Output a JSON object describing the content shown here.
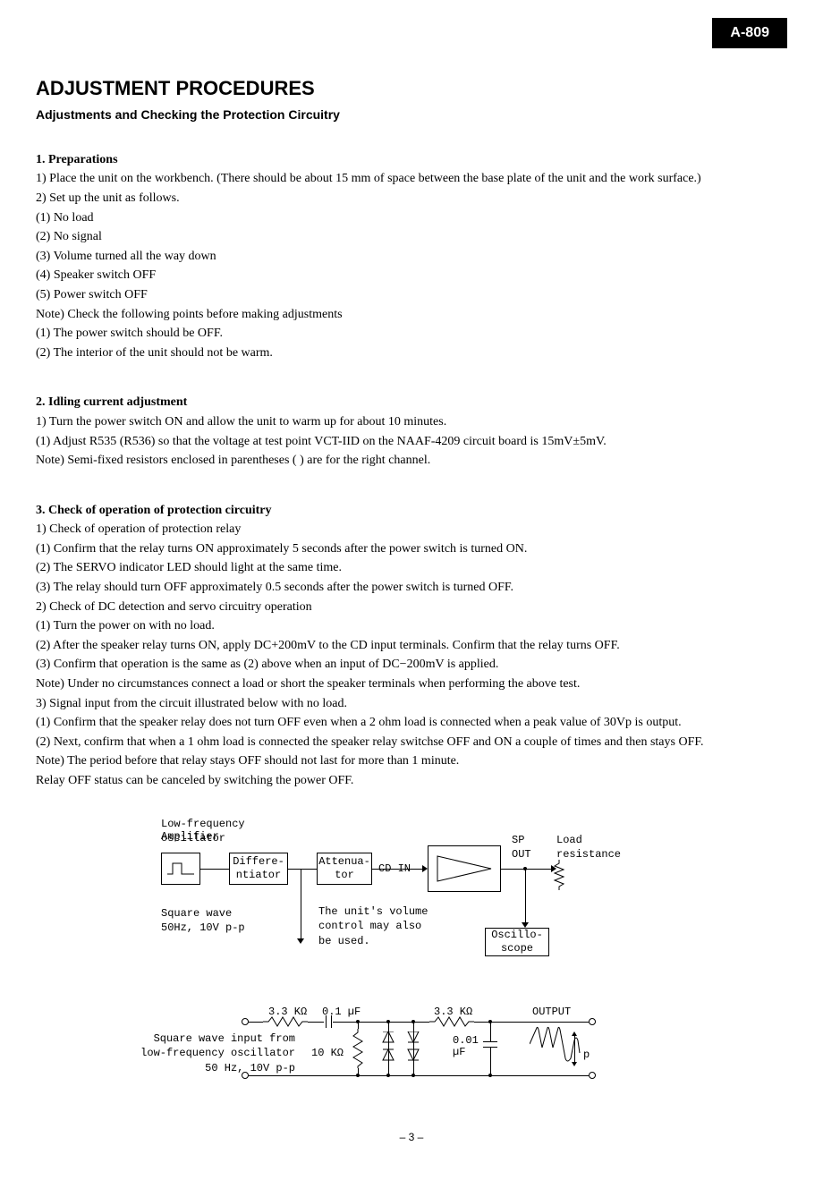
{
  "model_badge": "A-809",
  "page_number": "– 3 –",
  "title": "ADJUSTMENT PROCEDURES",
  "subtitle": "Adjustments and Checking the Protection Circuitry",
  "sections": {
    "s1": {
      "num": "1.",
      "title": "Preparations",
      "items": {
        "i1": "1) Place the unit on the workbench. (There should be about 15 mm of space between the base plate of the unit and the work surface.)",
        "i2": "2) Set up the unit as follows.",
        "i2_1": "(1) No load",
        "i2_2": "(2) No signal",
        "i2_3": "(3) Volume turned all the way down",
        "i2_4": "(4) Speaker switch OFF",
        "i2_5": "(5) Power switch OFF",
        "note": "Note) Check the following points before making adjustments",
        "note_1": "(1) The power switch should be OFF.",
        "note_2": "(2) The interior of the unit should not be warm."
      }
    },
    "s2": {
      "num": "2.",
      "title": "Idling current adjustment",
      "items": {
        "i1": "1) Turn the power switch ON and allow the unit to warm up for about 10 minutes.",
        "i1_1": "(1) Adjust R535 (R536) so that the voltage at test point VCT-IID on the NAAF-4209 circuit board is 15mV±5mV.",
        "note_1": "Note) Semi-fixed resistors enclosed in parentheses (   ) are for the right channel."
      }
    },
    "s3": {
      "num": "3.",
      "title": "Check of operation of protection circuitry",
      "items": {
        "i1": "1) Check of operation of protection relay",
        "i1_1": "(1) Confirm that the relay turns ON approximately 5 seconds after the power switch is turned ON.",
        "i1_2": "(2) The SERVO indicator LED should light at the same time.",
        "i1_3": "(3) The relay should turn OFF approximately 0.5 seconds after the power switch is turned OFF.",
        "i2": "2) Check of DC detection and servo circuitry operation",
        "i2_1": "(1) Turn the power on with no load.",
        "i2_2": "(2) After the speaker relay turns ON, apply DC+200mV to the CD input terminals. Confirm that the relay turns OFF.",
        "i2_3": "(3) Confirm that operation is the same as (2) above when an input of DC−200mV is applied.",
        "note1": "Note) Under no circumstances connect a load or short the speaker terminals when performing the above test.",
        "i3": "3) Signal input from the circuit illustrated below with no load.",
        "i3_1": "(1) Confirm that the speaker relay does not turn OFF even when a 2 ohm load is connected when a peak value of 30Vp is output.",
        "i3_2": "(2) Next, confirm that when a 1 ohm load is connected the speaker relay switchse OFF and ON a couple of times and then stays OFF.",
        "note2a": "Note) The period before that relay stays OFF should not last for more than 1 minute.",
        "note2b": "Relay OFF status can be canceled by switching the power OFF."
      }
    }
  },
  "diagram": {
    "labels": {
      "lfo": "Low-frequency\noscillator",
      "amplifier": "Amplifier",
      "sp": "SP\nOUT",
      "load": "Load\nresistance",
      "diff": "Differe-\nntiator",
      "atten": "Attenua-\ntor",
      "cdin": "CD IN",
      "oscillo": "Oscillo-\nscope",
      "sqwave": "Square wave\n50Hz, 10V p-p",
      "volume_note": "The unit's volume\ncontrol may also\nbe used."
    }
  },
  "circuit": {
    "labels": {
      "r1": "3.3 KΩ",
      "c1": "0.1 µF",
      "r2": "3.3 KΩ",
      "output": "OUTPUT",
      "input": "Square wave input from\nlow-frequency oscillator\n      50 Hz, 10V p-p",
      "r3": "10 KΩ",
      "c2": "0.01\nµF",
      "p": "p"
    }
  }
}
